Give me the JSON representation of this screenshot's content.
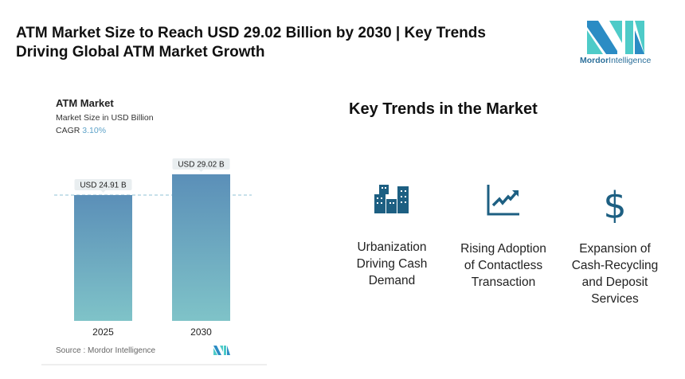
{
  "header": {
    "title": "ATM Market Size to Reach USD 29.02 Billion by 2030 | Key Trends Driving Global ATM Market Growth"
  },
  "logo": {
    "text_bold": "Mordor",
    "text_light": "Intelligence",
    "colors": [
      "#2b8cc4",
      "#4ecbc8"
    ]
  },
  "chart_data": {
    "type": "bar",
    "title": "ATM Market",
    "subtitle": "Market Size in USD Billion",
    "cagr_label": "CAGR",
    "cagr_value": "3.10%",
    "categories": [
      "2025",
      "2030"
    ],
    "values": [
      24.91,
      29.02
    ],
    "data_labels": [
      "USD 24.91 B",
      "USD 29.02 B"
    ],
    "grid": false,
    "reference_line": "dashed at 2025 value",
    "bar_gradient": [
      "#5b8fb8",
      "#7fc3c8"
    ],
    "source": "Source :  Mordor Intelligence"
  },
  "trends": {
    "title": "Key Trends in the Market",
    "icon_color": "#1d5f82",
    "items": [
      {
        "icon": "buildings-icon",
        "lines": [
          "Urbanization",
          "Driving Cash",
          "Demand"
        ]
      },
      {
        "icon": "trend-chart-icon",
        "lines": [
          "Rising Adoption",
          "of Contactless",
          "Transaction"
        ]
      },
      {
        "icon": "dollar-icon",
        "lines": [
          "Expansion of",
          "Cash-Recycling",
          "and Deposit",
          "Services"
        ]
      }
    ]
  }
}
